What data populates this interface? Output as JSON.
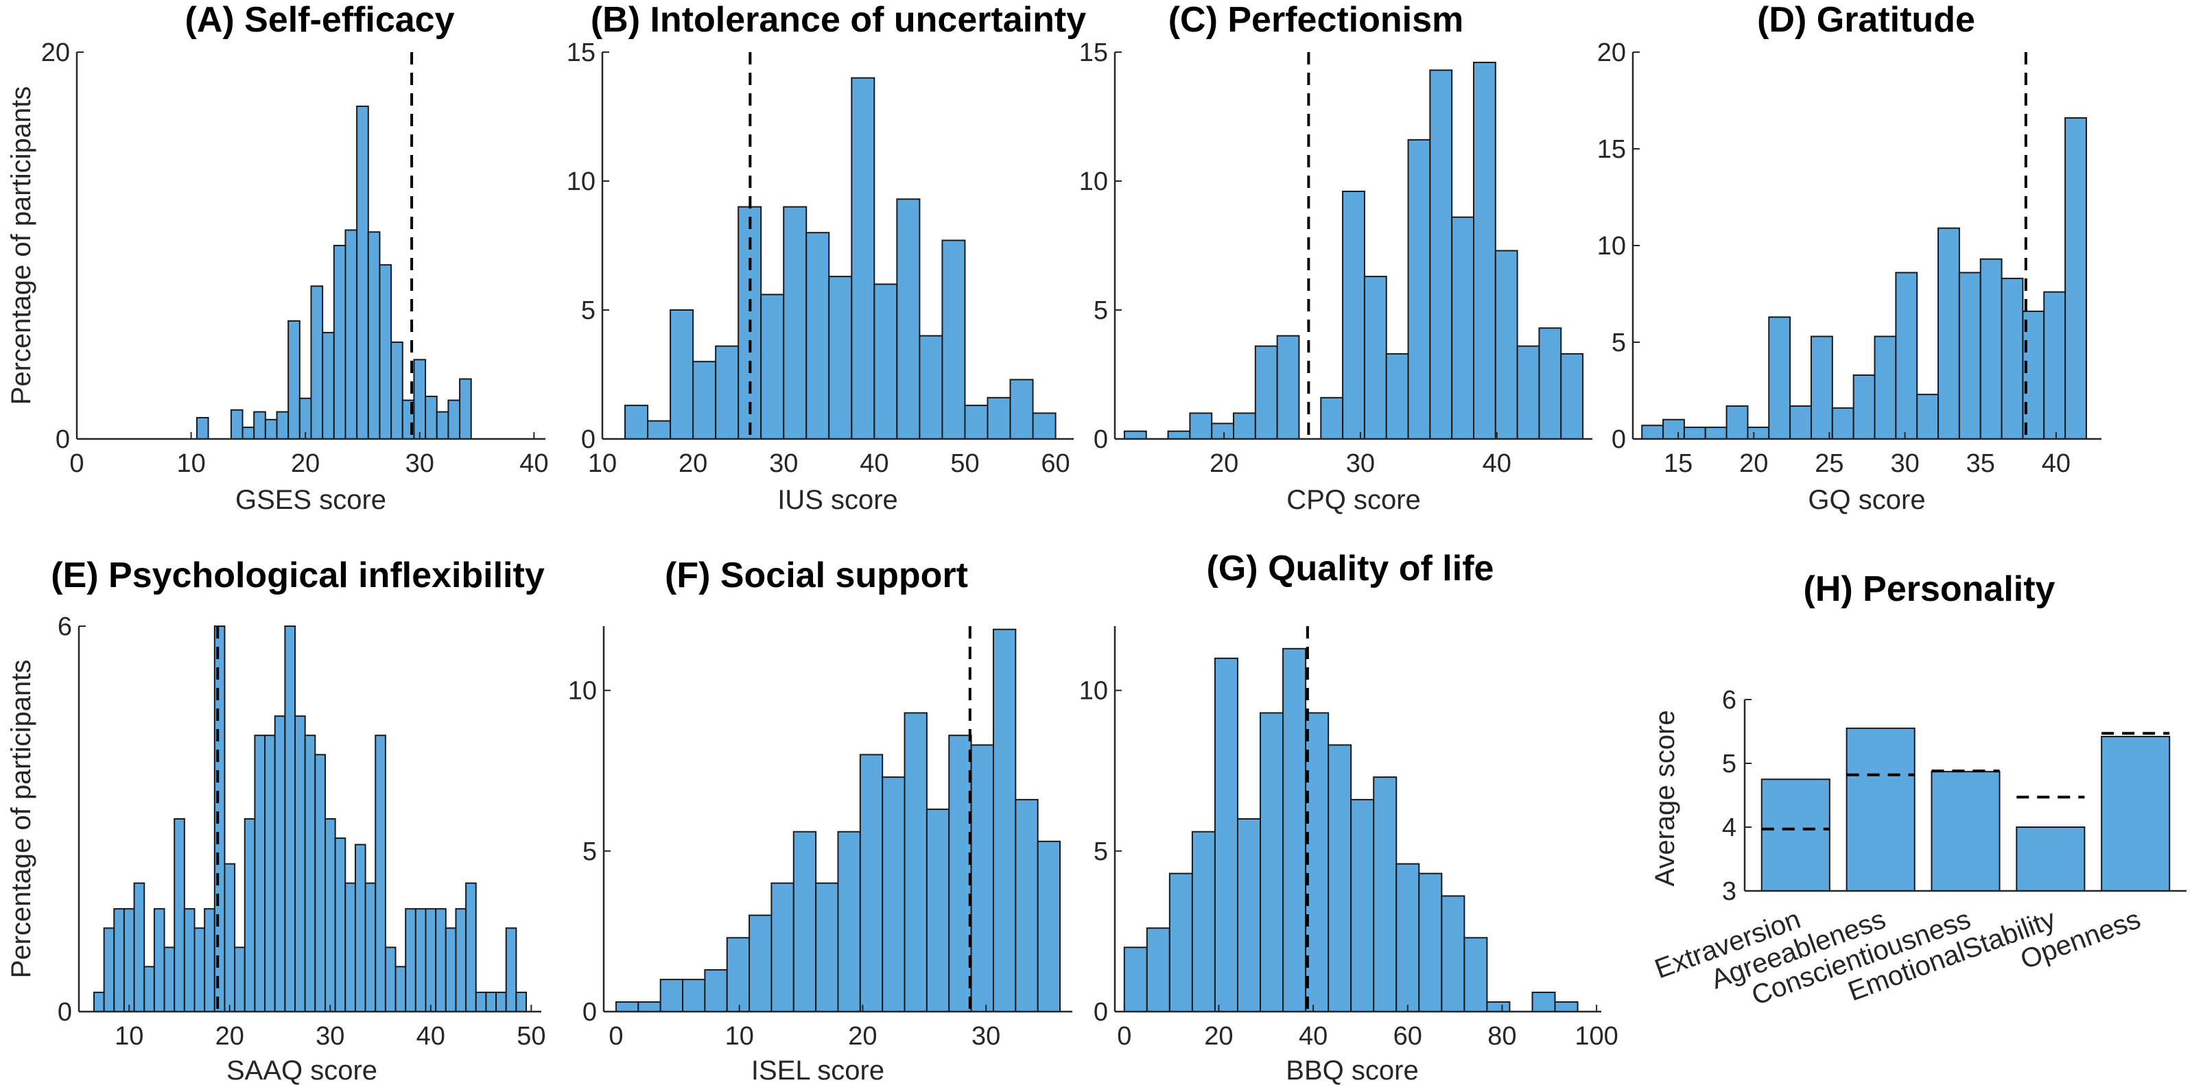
{
  "colors": {
    "bar": "#5DA8DF",
    "edge": "#1a1a1a",
    "reference_line": "#000000"
  },
  "chart_data": [
    {
      "id": "A",
      "type": "bar",
      "title": "(A) Self-efficacy",
      "xlabel": "GSES score",
      "ylabel": "Percentage of participants",
      "xlim": [
        0,
        41
      ],
      "ylim": [
        0,
        20
      ],
      "xticks": [
        0,
        10,
        20,
        30,
        40
      ],
      "yticks": [
        0,
        20
      ],
      "bin_width": 1,
      "bin_centers": [
        11,
        13,
        14,
        15,
        16,
        17,
        18,
        19,
        20,
        21,
        22,
        23,
        24,
        25,
        26,
        27,
        28,
        29,
        30,
        31,
        32,
        33,
        34,
        35,
        36,
        37,
        38,
        39,
        40
      ],
      "values": [
        1.1,
        0,
        1.5,
        0.6,
        1.4,
        1.0,
        1.4,
        6.1,
        2.1,
        7.9,
        5.5,
        10.0,
        10.8,
        17.2,
        10.7,
        9.0,
        5.0,
        2.0,
        4.1,
        2.2,
        1.4,
        2.0,
        3.1,
        0,
        0,
        0,
        0,
        0,
        0
      ],
      "reference_x": 29.3
    },
    {
      "id": "B",
      "type": "bar",
      "title": "(B) Intolerance of uncertainty",
      "xlabel": "IUS score",
      "ylabel": "",
      "xlim": [
        10,
        62
      ],
      "ylim": [
        0,
        15
      ],
      "xticks": [
        10,
        20,
        30,
        40,
        50,
        60
      ],
      "yticks": [
        0,
        5,
        10,
        15
      ],
      "bin_width": 2.5,
      "bin_centers": [
        13.75,
        16.25,
        18.75,
        21.25,
        23.75,
        26.25,
        28.75,
        31.25,
        33.75,
        36.25,
        38.75,
        41.25,
        43.75,
        46.25,
        48.75,
        51.25,
        53.75,
        56.25,
        58.75
      ],
      "values": [
        1.3,
        0.7,
        5.0,
        3.0,
        3.6,
        9.0,
        5.6,
        9.0,
        8.0,
        6.3,
        14.0,
        6.0,
        9.3,
        4.0,
        7.7,
        1.3,
        1.6,
        2.3,
        1.0
      ],
      "reference_x": 26.3
    },
    {
      "id": "C",
      "type": "bar",
      "title": "(C) Perfectionism",
      "xlabel": "CPQ score",
      "ylabel": "",
      "xlim": [
        12,
        47
      ],
      "ylim": [
        0,
        15
      ],
      "xticks": [
        20,
        30,
        40
      ],
      "yticks": [
        0,
        5,
        10,
        15
      ],
      "bin_width": 1.6,
      "bin_centers": [
        13.5,
        15.1,
        16.7,
        18.3,
        19.9,
        21.5,
        23.1,
        24.7,
        26.3,
        27.9,
        29.5,
        31.1,
        32.7,
        34.3,
        35.9,
        37.5,
        39.1,
        40.7,
        42.3,
        43.9,
        45.5
      ],
      "values": [
        0.3,
        0,
        0.3,
        1.0,
        0.6,
        1.0,
        3.6,
        4.0,
        0,
        1.6,
        9.6,
        6.3,
        3.3,
        11.6,
        14.3,
        8.6,
        14.6,
        7.3,
        3.6,
        4.3,
        3.3
      ],
      "reference_x": 26.2
    },
    {
      "id": "D",
      "type": "bar",
      "title": "(D) Gratitude",
      "xlabel": "GQ score",
      "ylabel": "",
      "xlim": [
        12,
        43
      ],
      "ylim": [
        0,
        20
      ],
      "xticks": [
        15,
        20,
        25,
        30,
        35,
        40
      ],
      "yticks": [
        0,
        5,
        10,
        15,
        20
      ],
      "bin_width": 1.4,
      "bin_centers": [
        13.3,
        14.7,
        16.1,
        17.5,
        18.9,
        20.3,
        21.7,
        23.1,
        24.5,
        25.9,
        27.3,
        28.7,
        30.1,
        31.5,
        32.9,
        34.3,
        35.7,
        37.1,
        38.5,
        39.9,
        41.3
      ],
      "values": [
        0.7,
        1.0,
        0.6,
        0.6,
        1.7,
        0.6,
        6.3,
        1.7,
        5.3,
        1.6,
        3.3,
        5.3,
        8.6,
        2.3,
        10.9,
        8.6,
        9.3,
        8.3,
        6.6,
        7.6,
        16.6
      ],
      "reference_x": 38.0
    },
    {
      "id": "E",
      "type": "bar",
      "title": "(E) Psychological inflexibility",
      "xlabel": "SAAQ score",
      "ylabel": "Percentage of participants",
      "xlim": [
        5,
        51
      ],
      "ylim": [
        0,
        6
      ],
      "xticks": [
        10,
        20,
        30,
        40,
        50
      ],
      "yticks": [
        0,
        6
      ],
      "bin_width": 1,
      "bin_centers": [
        7,
        8,
        9,
        10,
        11,
        12,
        13,
        14,
        15,
        16,
        17,
        18,
        19,
        20,
        21,
        22,
        23,
        24,
        25,
        26,
        27,
        28,
        29,
        30,
        31,
        32,
        33,
        34,
        35,
        36,
        37,
        38,
        39,
        40,
        41,
        42,
        43,
        44,
        45,
        46,
        47,
        48,
        49
      ],
      "values": [
        0.3,
        1.3,
        1.6,
        1.6,
        2.0,
        0.7,
        1.6,
        1.0,
        3.0,
        1.6,
        1.3,
        1.6,
        6.0,
        2.3,
        1.0,
        3.0,
        4.3,
        4.3,
        4.6,
        6.0,
        4.6,
        4.3,
        4.0,
        3.0,
        2.7,
        2.0,
        2.6,
        2.0,
        4.3,
        1.0,
        0.7,
        1.6,
        1.6,
        1.6,
        1.6,
        1.3,
        1.6,
        2.0,
        0.3,
        0.3,
        0.3,
        1.3,
        0.3
      ],
      "reference_x": 18.8
    },
    {
      "id": "F",
      "type": "bar",
      "title": "(F) Social support",
      "xlabel": "ISEL score",
      "ylabel": "",
      "xlim": [
        -1,
        37
      ],
      "ylim": [
        0,
        12
      ],
      "xticks": [
        0,
        10,
        20,
        30
      ],
      "yticks": [
        0,
        5,
        10
      ],
      "bin_width": 1.8,
      "bin_centers": [
        0.9,
        2.7,
        4.5,
        6.3,
        8.1,
        9.9,
        11.7,
        13.5,
        15.3,
        17.1,
        18.9,
        20.7,
        22.5,
        24.3,
        26.1,
        27.9,
        29.7,
        31.5,
        33.3,
        35.1
      ],
      "values": [
        0.3,
        0.3,
        1.0,
        1.0,
        1.3,
        2.3,
        3.0,
        4.0,
        5.6,
        4.0,
        5.6,
        8.0,
        7.3,
        9.3,
        6.3,
        8.6,
        8.3,
        11.9,
        6.6,
        5.3
      ],
      "reference_x": 28.7
    },
    {
      "id": "G",
      "type": "bar",
      "title": "(G) Quality of life",
      "xlabel": "BBQ score",
      "ylabel": "",
      "xlim": [
        -2,
        101
      ],
      "ylim": [
        0,
        12
      ],
      "xticks": [
        0,
        20,
        40,
        60,
        80,
        100
      ],
      "yticks": [
        0,
        5,
        10
      ],
      "bin_width": 4.8,
      "bin_centers": [
        2.4,
        7.2,
        12.0,
        16.8,
        21.6,
        26.4,
        31.2,
        36.0,
        40.8,
        45.6,
        50.4,
        55.2,
        60.0,
        64.8,
        69.6,
        74.4,
        79.2,
        84.0,
        88.8,
        93.6
      ],
      "values": [
        2.0,
        2.6,
        4.3,
        5.6,
        11.0,
        6.0,
        9.3,
        11.3,
        9.3,
        8.3,
        6.6,
        7.3,
        4.6,
        4.3,
        3.6,
        2.3,
        0.3,
        0,
        0.6,
        0.3
      ],
      "reference_x": 38.8
    },
    {
      "id": "H",
      "type": "bar",
      "title": "(H) Personality",
      "xlabel": "",
      "ylabel": "Average score",
      "ylim": [
        3,
        6
      ],
      "yticks": [
        3,
        4,
        5,
        6
      ],
      "categories": [
        "Extraversion",
        "Agreeableness",
        "Conscientiousness",
        "EmotionalStability",
        "Openness"
      ],
      "values": [
        4.75,
        5.55,
        4.87,
        4.0,
        5.42
      ],
      "reference_values": [
        3.97,
        4.82,
        4.88,
        4.47,
        5.47
      ]
    }
  ]
}
